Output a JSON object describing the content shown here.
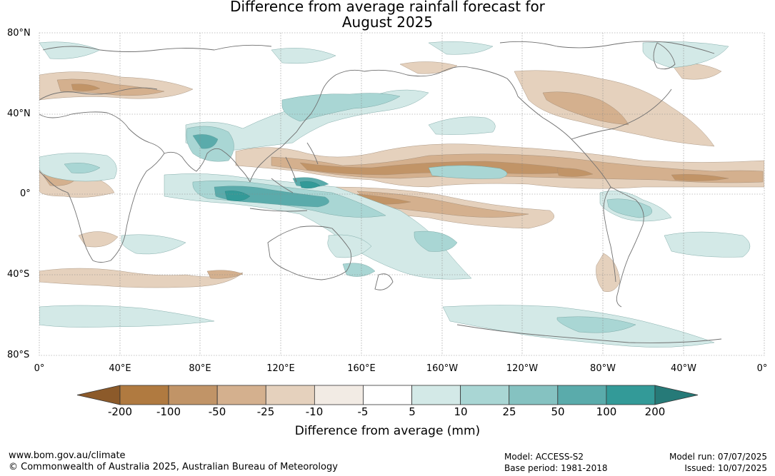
{
  "title": {
    "line1": "Difference from average rainfall forecast for",
    "line2": "August 2025"
  },
  "map": {
    "lat_labels": [
      "80°N",
      "40°N",
      "0°",
      "40°S",
      "80°S"
    ],
    "lon_labels": [
      "0°",
      "40°E",
      "80°E",
      "120°E",
      "160°E",
      "160°W",
      "120°W",
      "80°W",
      "40°W",
      "0°"
    ],
    "coastline_color": "#707070",
    "gridline_color": "#888888"
  },
  "colorbar": {
    "title": "Difference from average (mm)",
    "tick_labels": [
      "-200",
      "-100",
      "-50",
      "-25",
      "-10",
      "-5",
      "5",
      "10",
      "25",
      "50",
      "100",
      "200"
    ],
    "colors": {
      "below_min": "#8c5a2a",
      "bins": [
        "#b07a40",
        "#c19467",
        "#d4b08e",
        "#e5d1bd",
        "#f2ebe4",
        "#ffffff",
        "#d3e9e7",
        "#a9d6d4",
        "#85c2c1",
        "#5aabab",
        "#339a98"
      ],
      "above_max": "#267a78"
    }
  },
  "footer": {
    "website": "www.bom.gov.au/climate",
    "copyright": "© Commonwealth of Australia 2025, Australian Bureau of Meteorology",
    "model": "Model: ACCESS-S2",
    "base_period": "Base period: 1981-2018",
    "model_run": "Model run: 07/07/2025",
    "issued": "Issued: 10/07/2025"
  }
}
